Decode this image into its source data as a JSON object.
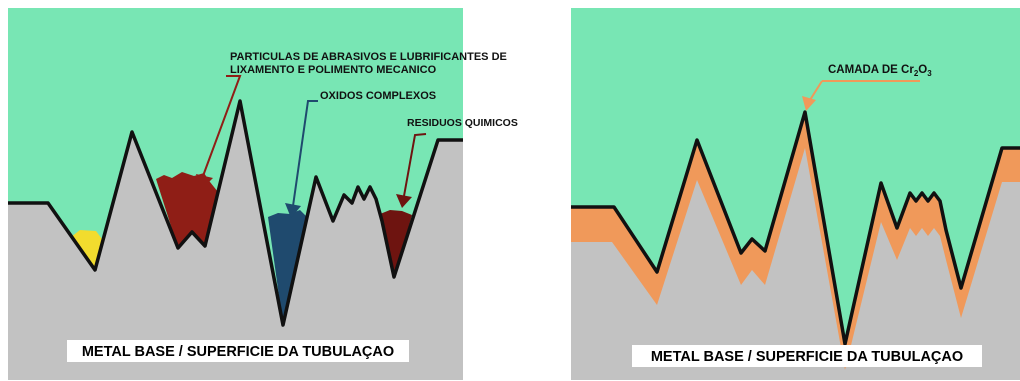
{
  "left_panel": {
    "base_label": "METAL BASE / SUPERFICIE DA TUBULAÇAO",
    "labels": {
      "abrasives_line1": "PARTICULAS DE ABRASIVOS E LUBRIFICANTES DE",
      "abrasives_line2": "LIXAMENTO E POLIMENTO MECANICO",
      "oxides": "OXIDOS COMPLEXOS",
      "residues": "RESIDUOS QUIMICOS"
    },
    "colors": {
      "sky": "#78e6b4",
      "metal": "#c2c2c2",
      "abrasives": "#8f1e16",
      "oxides": "#1f4a6e",
      "residues": "#6e1410",
      "contaminant_small": "#f2dc2e",
      "outline": "#111111"
    }
  },
  "right_panel": {
    "base_label": "METAL BASE / SUPERFICIE DA TUBULAÇAO",
    "layer_label_prefix": "CAMADA DE Cr",
    "layer_label_sub1": "2",
    "layer_label_mid": "O",
    "layer_label_sub2": "3",
    "colors": {
      "sky": "#78e6b4",
      "metal": "#c2c2c2",
      "oxide_layer": "#f0995a",
      "leader": "#f0995a",
      "outline": "#111111"
    }
  }
}
